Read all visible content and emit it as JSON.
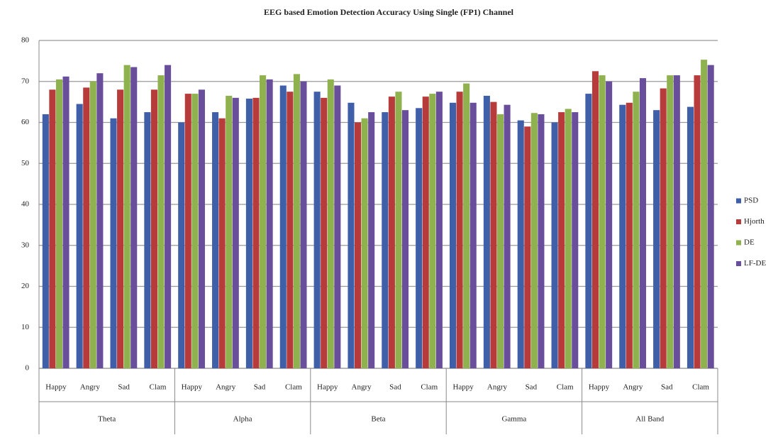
{
  "chart_data": {
    "type": "bar",
    "title": "EEG based Emotion Detection  Accuracy Using Single (FP1) Channel",
    "categories": [
      "Happy",
      "Angry",
      "Sad",
      "Clam",
      "Happy",
      "Angry",
      "Sad",
      "Clam",
      "Happy",
      "Angry",
      "Sad",
      "Clam",
      "Happy",
      "Angry",
      "Sad",
      "Clam",
      "Happy",
      "Angry",
      "Sad",
      "Clam"
    ],
    "groups": [
      "Theta",
      "Alpha",
      "Beta",
      "Gamma",
      "All Band"
    ],
    "series": [
      {
        "name": "PSD",
        "color": "#3f5fa8",
        "values": [
          62,
          64.5,
          61,
          62.5,
          60,
          62.5,
          65.8,
          69,
          67.5,
          64.8,
          62.5,
          63.5,
          64.8,
          66.5,
          60.5,
          60,
          67,
          64.3,
          63,
          63.8
        ]
      },
      {
        "name": "Hjorth",
        "color": "#b83b3b",
        "values": [
          68,
          68.5,
          68,
          68,
          67,
          61,
          66,
          67.5,
          66,
          60,
          66.3,
          66.3,
          67.5,
          65,
          59,
          62.5,
          72.5,
          64.8,
          68.3,
          71.5
        ]
      },
      {
        "name": "DE",
        "color": "#8fb24f",
        "values": [
          70.5,
          70,
          74,
          71.5,
          67,
          66.5,
          71.5,
          71.8,
          70.5,
          61,
          67.5,
          67,
          69.5,
          62,
          62.3,
          63.3,
          71.5,
          67.5,
          71.5,
          75.3
        ]
      },
      {
        "name": "LF-DE",
        "color": "#684e9b",
        "values": [
          71.2,
          72,
          73.5,
          74,
          68,
          66,
          70.5,
          70,
          69,
          62.5,
          63,
          67.5,
          64.8,
          64.3,
          62,
          62.5,
          70,
          70.8,
          71.5,
          74
        ]
      }
    ],
    "ylim": [
      0,
      80
    ],
    "yticks": [
      0,
      10,
      20,
      30,
      40,
      50,
      60,
      70,
      80
    ],
    "grid": true,
    "legend": "right"
  }
}
